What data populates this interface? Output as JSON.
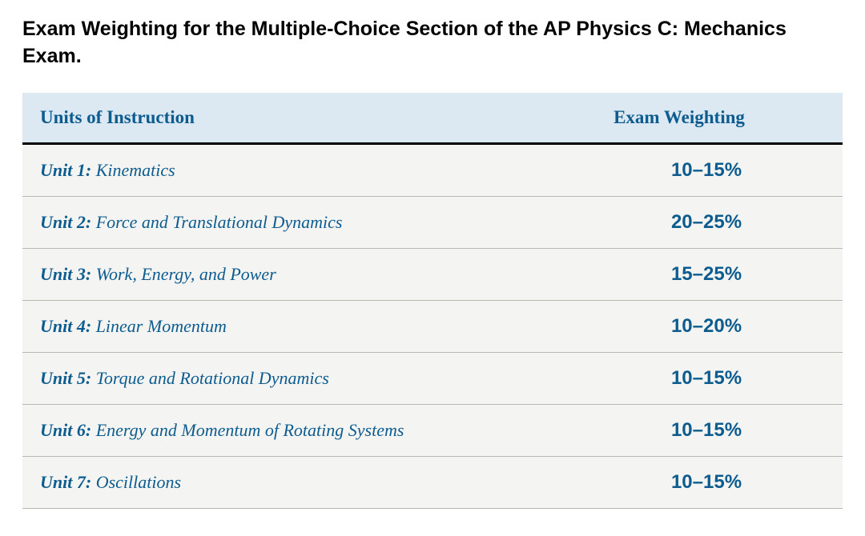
{
  "title": "Exam Weighting for the Multiple-Choice Section of the AP Physics C: Mechanics Exam.",
  "table": {
    "header_units": "Units of Instruction",
    "header_weight": "Exam Weighting",
    "rows": [
      {
        "unit_label": "Unit 1:",
        "topic": "Kinematics",
        "weight": "10–15%"
      },
      {
        "unit_label": "Unit 2:",
        "topic": "Force and Translational Dynamics",
        "weight": "20–25%"
      },
      {
        "unit_label": "Unit 3:",
        "topic": "Work, Energy, and Power",
        "weight": "15–25%"
      },
      {
        "unit_label": "Unit 4:",
        "topic": "Linear Momentum",
        "weight": "10–20%"
      },
      {
        "unit_label": "Unit 5:",
        "topic": "Torque and Rotational Dynamics",
        "weight": "10–15%"
      },
      {
        "unit_label": "Unit 6:",
        "topic": "Energy and Momentum of Rotating Systems",
        "weight": "10–15%"
      },
      {
        "unit_label": "Unit 7:",
        "topic": "Oscillations",
        "weight": "10–15%"
      }
    ]
  },
  "colors": {
    "header_bg": "#dce8f2",
    "text_primary": "#0d5c8f",
    "title_color": "#000000",
    "row_bg": "#f4f4f2",
    "row_border": "#b8b8b0",
    "header_border": "#000000"
  },
  "typography": {
    "title_fontsize": 25,
    "header_fontsize": 23,
    "body_fontsize": 22,
    "weight_fontsize": 24
  }
}
